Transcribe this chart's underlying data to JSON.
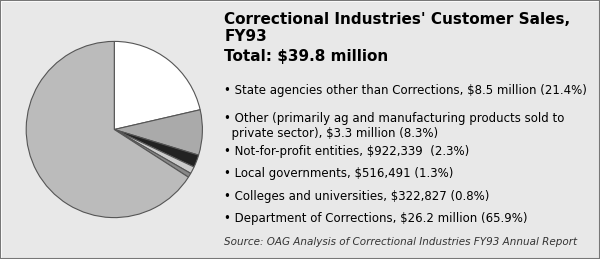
{
  "title": "Correctional Industries' Customer Sales, FY93",
  "total_label": "Total: $39.8 million",
  "slices": [
    {
      "label": "State agencies other than Corrections, $8.5 million (21.4%)",
      "value": 21.4,
      "color": "#ffffff"
    },
    {
      "label": "Other (primarily ag and manufacturing products sold to\n  private sector), $3.3 million (8.3%)",
      "value": 8.3,
      "color": "#aaaaaa"
    },
    {
      "label": "Not-for-profit entities, $922,339  (2.3%)",
      "value": 2.3,
      "color": "#222222"
    },
    {
      "label": "Local governments, $516,491 (1.3%)",
      "value": 1.3,
      "color": "#cccccc"
    },
    {
      "label": "Colleges and universities, $322,827 (0.8%)",
      "value": 0.8,
      "color": "#888888"
    },
    {
      "label": "Department of Corrections, $26.2 million (65.9%)",
      "value": 65.9,
      "color": "#bbbbbb"
    }
  ],
  "source": "Source: OAG Analysis of Correctional Industries FY93 Annual Report",
  "background_color": "#e8e8e8",
  "border_color": "#999999",
  "title_fontsize": 11,
  "total_fontsize": 11,
  "legend_fontsize": 8.5,
  "source_fontsize": 7.5
}
